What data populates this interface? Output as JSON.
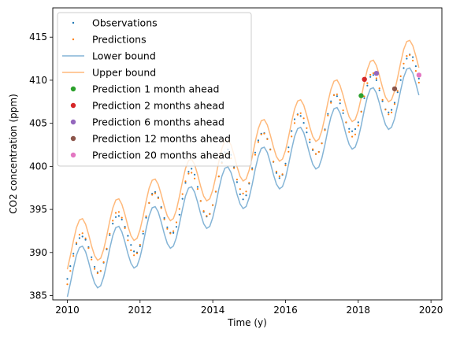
{
  "chart_data": {
    "type": "line",
    "title": "",
    "xlabel": "Time (y)",
    "ylabel": "CO2 concentration (ppm)",
    "xlim": [
      2009.6,
      2020.3
    ],
    "ylim": [
      384.5,
      418.4
    ],
    "xticks": [
      2010,
      2012,
      2014,
      2016,
      2018,
      2020
    ],
    "yticks": [
      385,
      390,
      395,
      400,
      405,
      410,
      415
    ],
    "grid": false,
    "legend_position": "top-left",
    "colors": {
      "observations": "#1f77b4",
      "predictions": "#ff7f0e",
      "lower": "#1f77b4",
      "upper": "#ff7f0e",
      "pred_1": "#2ca02c",
      "pred_2": "#d62728",
      "pred_6": "#9467bd",
      "pred_12": "#8c564b",
      "pred_20": "#e377c2"
    },
    "legend": [
      {
        "key": "observations",
        "label": "Observations",
        "kind": "dots"
      },
      {
        "key": "predictions",
        "label": "Predictions",
        "kind": "dots"
      },
      {
        "key": "lower",
        "label": "Lower bound",
        "kind": "line"
      },
      {
        "key": "upper",
        "label": "Upper bound",
        "kind": "line"
      },
      {
        "key": "pred_1",
        "label": "Prediction 1 month ahead",
        "kind": "marker"
      },
      {
        "key": "pred_2",
        "label": "Prediction 2 months ahead",
        "kind": "marker"
      },
      {
        "key": "pred_6",
        "label": "Prediction 6 months ahead",
        "kind": "marker"
      },
      {
        "key": "pred_12",
        "label": "Prediction 12 months ahead",
        "kind": "marker"
      },
      {
        "key": "pred_20",
        "label": "Prediction 20 months ahead",
        "kind": "marker"
      }
    ],
    "model": {
      "start": 2010.0,
      "end": 2019.7,
      "step": 0.0833333,
      "base_at_start": 388.5,
      "trend_per_year": 2.3,
      "seasonal_amplitude": 3.0,
      "seasonal_peak_phase": 0.37,
      "band_half_width": 1.6
    },
    "highlight_points": [
      {
        "key": "pred_1",
        "x": 2018.08,
        "y": 408.2
      },
      {
        "key": "pred_2",
        "x": 2018.17,
        "y": 410.1
      },
      {
        "key": "pred_6",
        "x": 2018.5,
        "y": 410.8
      },
      {
        "key": "pred_12",
        "x": 2019.0,
        "y": 409.0
      },
      {
        "key": "pred_20",
        "x": 2019.67,
        "y": 410.6
      }
    ]
  }
}
